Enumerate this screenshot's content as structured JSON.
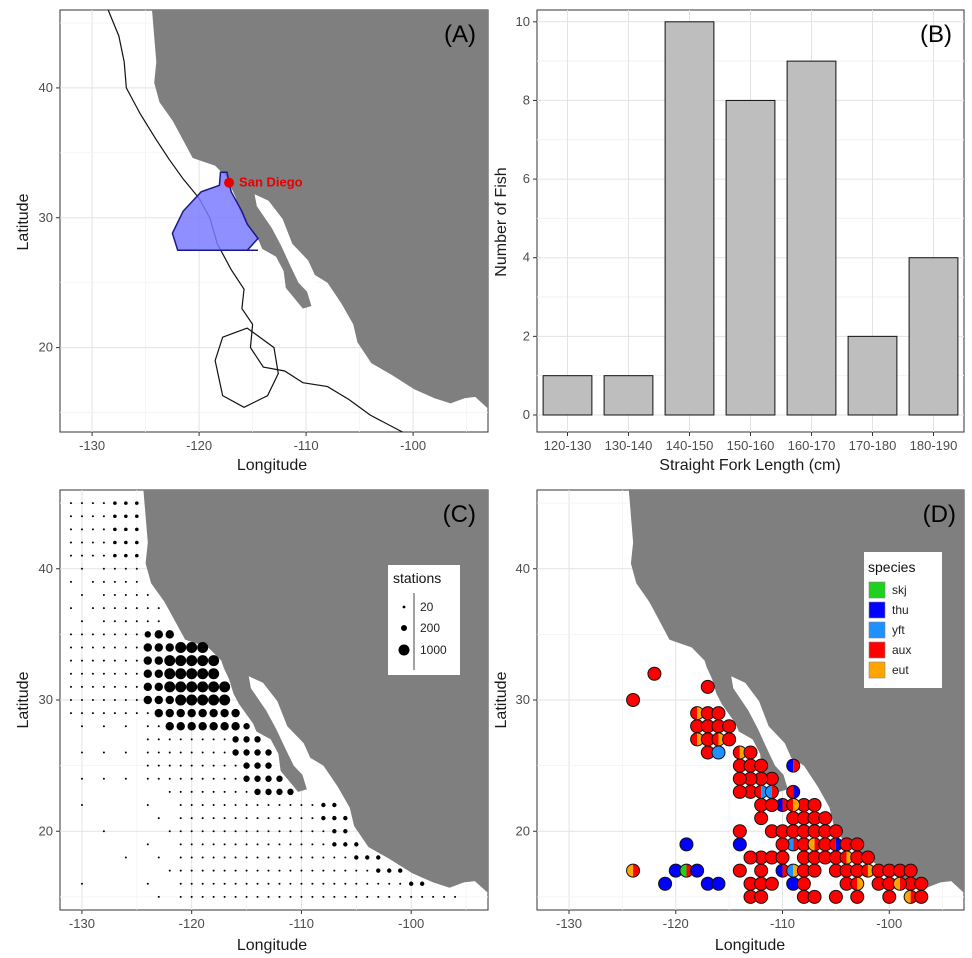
{
  "chart_data": [
    {
      "panel": "A",
      "type": "map",
      "panel_label": "(A)",
      "xlabel": "Longitude",
      "ylabel": "Latitude",
      "xlim": [
        -133,
        -93
      ],
      "ylim": [
        13.5,
        46
      ],
      "xticks": [
        -130,
        -120,
        -110,
        -100
      ],
      "yticks": [
        20,
        30,
        40
      ],
      "grid": true,
      "annotation": {
        "text": "San Diego",
        "lon": -117.2,
        "lat": 32.7,
        "color": "#e60000"
      },
      "region_fill": "#7b7bff"
    },
    {
      "panel": "B",
      "type": "bar",
      "panel_label": "(B)",
      "categories": [
        "120-130",
        "130-140",
        "140-150",
        "150-160",
        "160-170",
        "170-180",
        "180-190"
      ],
      "values": [
        1,
        1,
        10,
        8,
        9,
        2,
        4
      ],
      "xlabel": "Straight Fork Length (cm)",
      "ylabel": "Number of Fish",
      "ylim": [
        0,
        10.3
      ],
      "yticks": [
        0,
        2,
        4,
        6,
        8,
        10
      ],
      "bar_color": "#bebebe",
      "grid": true
    },
    {
      "panel": "C",
      "type": "scatter",
      "panel_label": "(C)",
      "xlabel": "Longitude",
      "ylabel": "Latitude",
      "xlim": [
        -132,
        -93
      ],
      "ylim": [
        14,
        46
      ],
      "xticks": [
        -130,
        -120,
        -110,
        -100
      ],
      "yticks": [
        20,
        30,
        40
      ],
      "legend": {
        "title": "stations",
        "entries": [
          "20",
          "200",
          "1000"
        ],
        "position": "top-right"
      },
      "grid": true
    },
    {
      "panel": "D",
      "type": "scatter",
      "panel_label": "(D)",
      "xlabel": "Longitude",
      "ylabel": "Latitude",
      "xlim": [
        -133,
        -93
      ],
      "ylim": [
        14,
        46
      ],
      "xticks": [
        -130,
        -120,
        -110,
        -100
      ],
      "yticks": [
        20,
        30,
        40
      ],
      "legend": {
        "title": "species",
        "position": "top-right",
        "entries": [
          {
            "label": "skj",
            "color": "#1fd11f"
          },
          {
            "label": "thu",
            "color": "#0000ff"
          },
          {
            "label": "yft",
            "color": "#1e90ff"
          },
          {
            "label": "aux",
            "color": "#ff0000"
          },
          {
            "label": "eut",
            "color": "#ffa500"
          }
        ]
      },
      "grid": true
    }
  ]
}
